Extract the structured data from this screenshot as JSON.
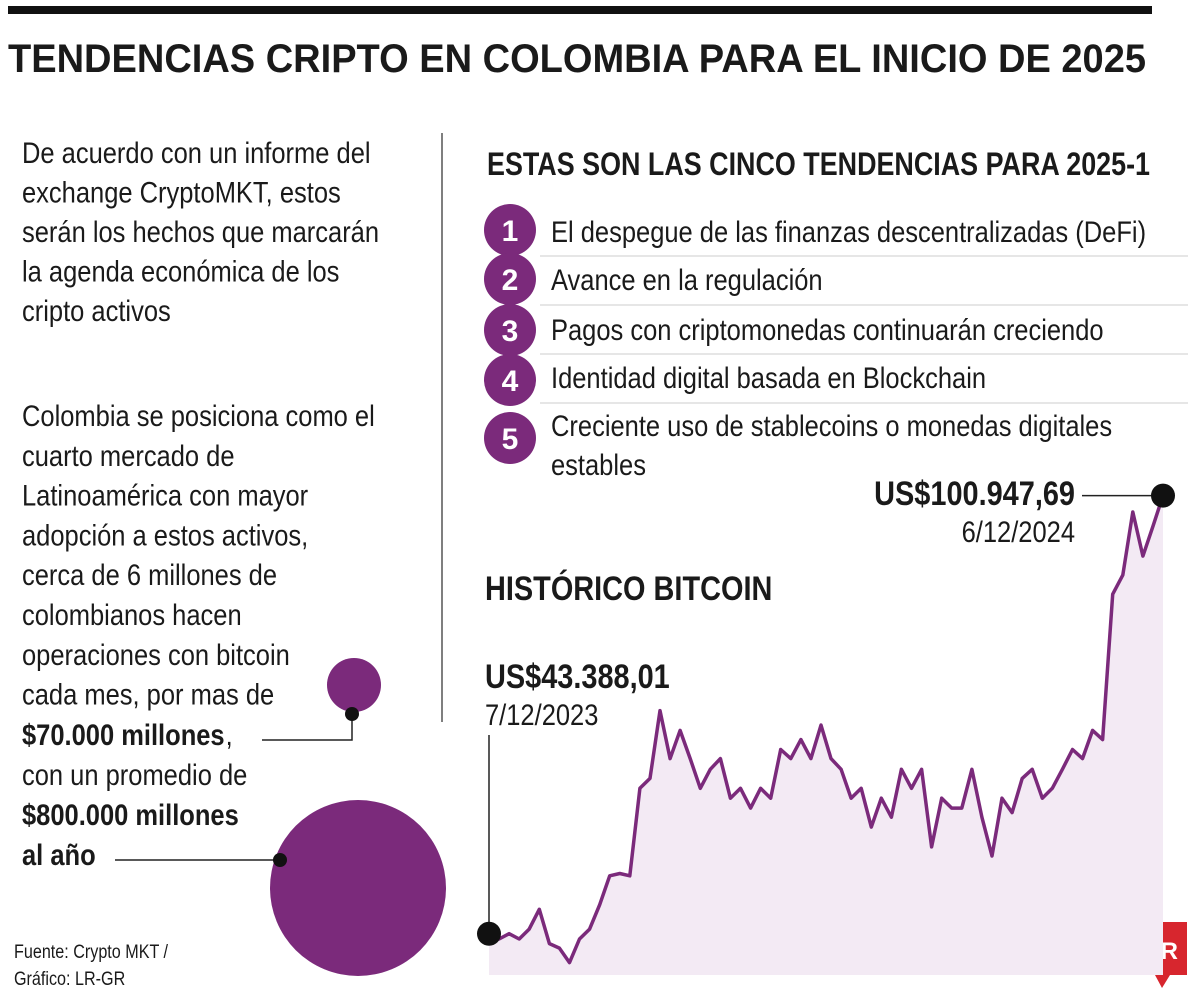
{
  "header": {
    "title": "TENDENCIAS CRIPTO EN COLOMBIA PARA EL INICIO DE 2025"
  },
  "intro": {
    "lines": [
      "De acuerdo con un informe del",
      "exchange CryptoMKT, estos",
      "serán los hechos que marcarán",
      "la agenda económica de los",
      "cripto activos"
    ]
  },
  "stats": {
    "lines": [
      "Colombia se posiciona como el",
      "cuarto mercado de",
      "Latinoamérica con mayor",
      "adopción a estos activos,",
      "cerca de 6 millones de",
      "colombianos hacen",
      "operaciones con bitcoin",
      "cada mes, por mas de"
    ],
    "amount1": "$70.000 millones",
    "comma": ",",
    "middle": "con un promedio de",
    "amount2_lines": [
      "$800.000 millones",
      "al año"
    ]
  },
  "trends": {
    "title": "ESTAS SON LAS CINCO TENDENCIAS PARA 2025-1",
    "items": [
      {
        "number": 1,
        "lines": [
          "El despegue de las finanzas descentralizadas (DeFi)"
        ]
      },
      {
        "number": 2,
        "lines": [
          "Avance en la regulación"
        ]
      },
      {
        "number": 3,
        "lines": [
          "Pagos con criptomonedas continuarán creciendo"
        ]
      },
      {
        "number": 4,
        "lines": [
          "Identidad digital basada en Blockchain"
        ]
      },
      {
        "number": 5,
        "lines": [
          "Creciente uso de stablecoins o monedas digitales",
          "estables"
        ]
      }
    ]
  },
  "chart_data": {
    "type": "line",
    "title": "HISTÓRICO BITCOIN",
    "color": "#7b2a7b",
    "fill_color": "#f3eaf4",
    "categories": [
      "7/12/2023",
      null,
      null,
      null,
      null,
      null,
      null,
      null,
      null,
      null,
      null,
      null,
      null,
      null,
      null,
      null,
      null,
      null,
      null,
      null,
      null,
      null,
      null,
      null,
      null,
      null,
      null,
      null,
      null,
      null,
      null,
      null,
      null,
      null,
      null,
      null,
      null,
      null,
      null,
      null,
      null,
      null,
      null,
      null,
      null,
      null,
      null,
      null,
      null,
      null,
      null,
      null,
      null,
      null,
      null,
      null,
      null,
      null,
      null,
      null,
      null,
      null,
      null,
      null,
      null,
      null,
      null,
      "6/12/2024"
    ],
    "values": [
      43388.01,
      42700,
      43400,
      42700,
      44000,
      46600,
      42100,
      41500,
      39600,
      42700,
      44000,
      47200,
      51000,
      51300,
      51000,
      62500,
      63800,
      72700,
      66400,
      70100,
      66400,
      62500,
      65000,
      66400,
      61200,
      62500,
      59900,
      62500,
      61200,
      67600,
      66400,
      68900,
      66400,
      70800,
      66400,
      65000,
      61200,
      62500,
      57400,
      61200,
      58700,
      65000,
      62500,
      65000,
      54800,
      61200,
      59900,
      59900,
      65000,
      58700,
      53600,
      61200,
      59300,
      63800,
      65000,
      61200,
      62500,
      65000,
      67600,
      66400,
      70100,
      68900,
      88000,
      90500,
      98800,
      93000,
      96900,
      100947.69
    ],
    "value_labels": [
      "US$43.388,01",
      null,
      null,
      null,
      null,
      null,
      null,
      null,
      null,
      null,
      null,
      null,
      null,
      null,
      null,
      null,
      null,
      null,
      null,
      null,
      null,
      null,
      null,
      null,
      null,
      null,
      null,
      null,
      null,
      null,
      null,
      null,
      null,
      null,
      null,
      null,
      null,
      null,
      null,
      null,
      null,
      null,
      null,
      null,
      null,
      null,
      null,
      null,
      null,
      null,
      null,
      null,
      null,
      null,
      null,
      null,
      null,
      null,
      null,
      null,
      null,
      null,
      null,
      null,
      null,
      null,
      null,
      "US$100.947,69"
    ],
    "ylim": [
      36000,
      103000
    ]
  },
  "source": {
    "lines": [
      "Fuente: Crypto MKT /",
      "Gráfico: LR-GR"
    ]
  },
  "logo": {
    "text": "LR"
  }
}
